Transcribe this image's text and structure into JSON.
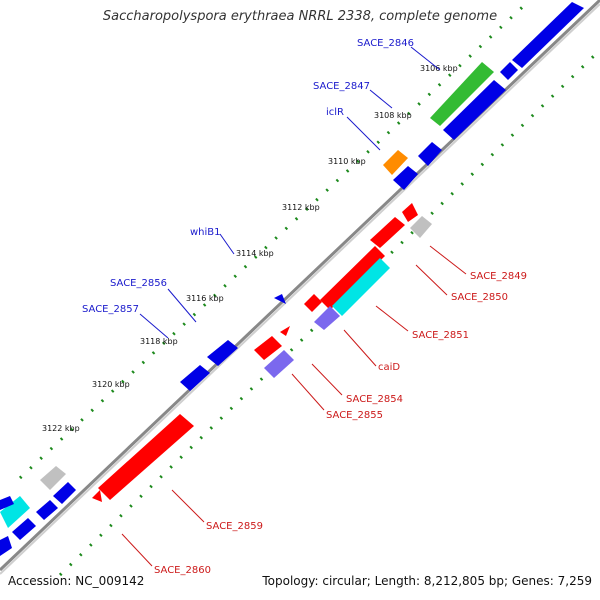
{
  "title": "Saccharopolyspora erythraea NRRL 2338, complete genome",
  "footer": {
    "accession": "Accession: NC_009142",
    "summary": "Topology: circular; Length: 8,212,805 bp; Genes: 7,259"
  },
  "colors": {
    "backbone": "#8a8a8a",
    "tick": "#1d8a1d",
    "forward_label": "#1a1acc",
    "reverse_label": "#cc1a1a",
    "blue": "#0000e6",
    "green": "#33bb33",
    "orange": "#ff8c00",
    "red": "#ff0000",
    "cyan": "#00e5e5",
    "purple": "#7b68ee",
    "gray": "#c0c0c0"
  },
  "scale_labels": [
    "3106 kbp",
    "3108 kbp",
    "3110 kbp",
    "3112 kbp",
    "3114 kbp",
    "3116 kbp",
    "3118 kbp",
    "3120 kbp",
    "3122 kbp"
  ],
  "forward_gene_labels": [
    "SACE_2846",
    "SACE_2847",
    "iclR",
    "whiB1",
    "SACE_2856",
    "SACE_2857"
  ],
  "reverse_gene_labels": [
    "SACE_2849",
    "SACE_2850",
    "SACE_2851",
    "caiD",
    "SACE_2854",
    "SACE_2855",
    "SACE_2859",
    "SACE_2860"
  ]
}
